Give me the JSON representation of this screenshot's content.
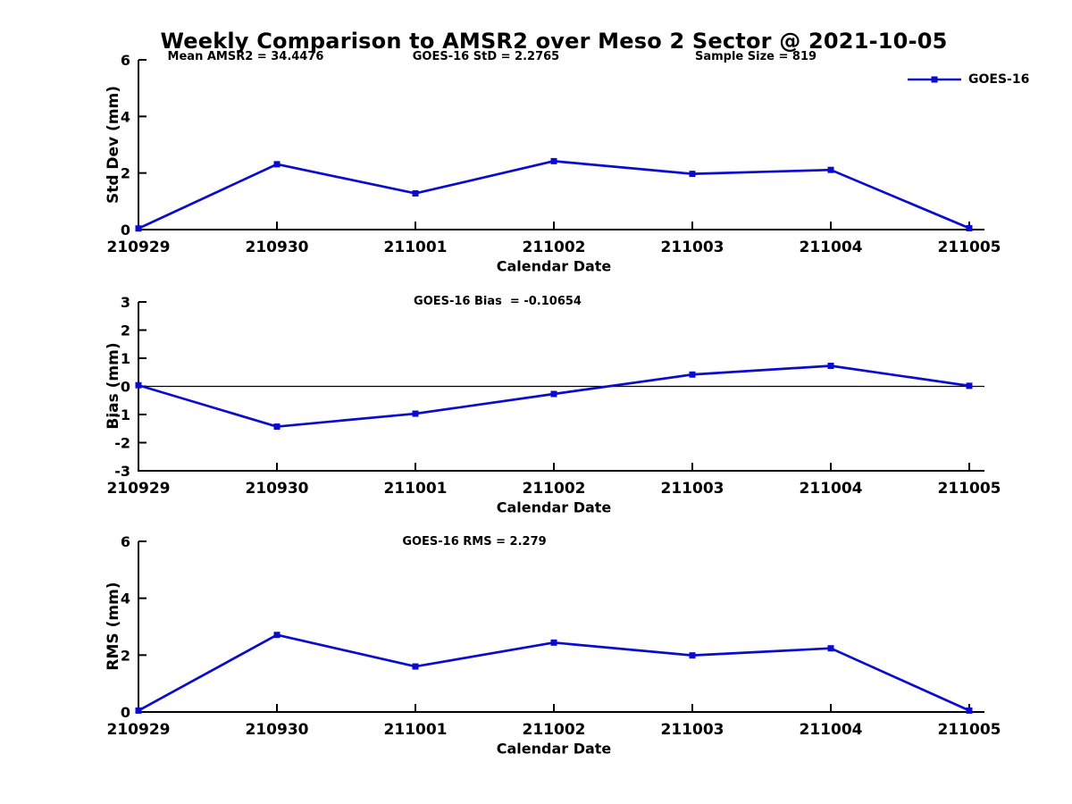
{
  "title": "Weekly Comparison to AMSR2 over Meso 2 Sector @ 2021-10-05",
  "legend": {
    "label": "GOES-16"
  },
  "colors": {
    "series_line": "#0B0BCF",
    "axis": "#000000",
    "zero_line": "#000000",
    "text": "#000000",
    "background": "#FFFFFF"
  },
  "chart_data": [
    {
      "type": "line",
      "name": "std-dev",
      "ylabel": "Std Dev (mm)",
      "xlabel": "Calendar Date",
      "ylim": [
        0,
        6
      ],
      "yticks": [
        0,
        2,
        4,
        6
      ],
      "zero_line": false,
      "legend_position": "top-right",
      "grid": false,
      "annotations": [
        {
          "text": "Mean AMSR2 = 34.4476"
        },
        {
          "text": "GOES-16 StD = 2.2765"
        },
        {
          "text": "Sample Size = 819"
        }
      ],
      "categories": [
        "210929",
        "210930",
        "211001",
        "211002",
        "211003",
        "211004",
        "211005"
      ],
      "series": [
        {
          "name": "GOES-16",
          "marker": "square",
          "values": [
            0.04,
            2.31,
            1.28,
            2.42,
            1.97,
            2.11,
            0.05
          ]
        }
      ]
    },
    {
      "type": "line",
      "name": "bias",
      "ylabel": "Bias (mm)",
      "xlabel": "Calendar Date",
      "ylim": [
        -3,
        3
      ],
      "yticks": [
        -3,
        -2,
        -1,
        0,
        1,
        2,
        3
      ],
      "zero_line": true,
      "grid": false,
      "annotations": [
        {
          "text": "GOES-16 Bias  = -0.10654"
        }
      ],
      "categories": [
        "210929",
        "210930",
        "211001",
        "211002",
        "211003",
        "211004",
        "211005"
      ],
      "series": [
        {
          "name": "GOES-16",
          "marker": "square",
          "values": [
            0.04,
            -1.43,
            -0.97,
            -0.27,
            0.42,
            0.73,
            0.02
          ]
        }
      ]
    },
    {
      "type": "line",
      "name": "rms",
      "ylabel": "RMS (mm)",
      "xlabel": "Calendar Date",
      "ylim": [
        0,
        6
      ],
      "yticks": [
        0,
        2,
        4,
        6
      ],
      "zero_line": false,
      "grid": false,
      "annotations": [
        {
          "text": "GOES-16 RMS = 2.279"
        }
      ],
      "categories": [
        "210929",
        "210930",
        "211001",
        "211002",
        "211003",
        "211004",
        "211005"
      ],
      "series": [
        {
          "name": "GOES-16",
          "marker": "square",
          "values": [
            0.05,
            2.71,
            1.6,
            2.44,
            1.99,
            2.24,
            0.05
          ]
        }
      ]
    }
  ]
}
